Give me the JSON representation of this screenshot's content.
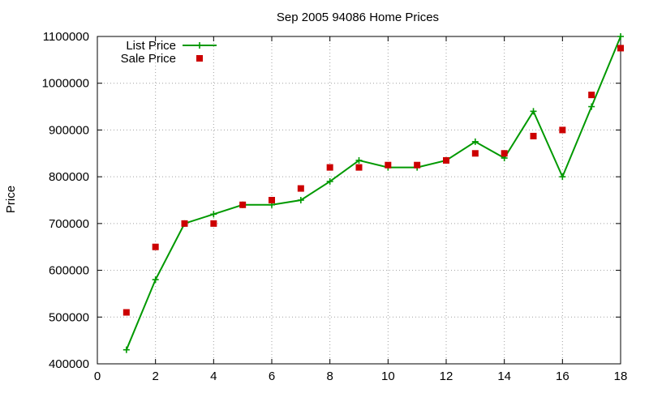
{
  "chart_data": {
    "type": "line",
    "title": "Sep 2005 94086 Home Prices",
    "xlabel": "",
    "ylabel": "Price",
    "xlim": [
      0,
      18
    ],
    "ylim": [
      400000,
      1100000
    ],
    "x_ticks": [
      0,
      2,
      4,
      6,
      8,
      10,
      12,
      14,
      16,
      18
    ],
    "y_ticks": [
      400000,
      500000,
      600000,
      700000,
      800000,
      900000,
      1000000,
      1100000
    ],
    "grid": true,
    "legend_position": "top-left",
    "series": [
      {
        "name": "List Price",
        "style": "line with + markers",
        "color": "#009900",
        "x": [
          1,
          2,
          3,
          4,
          5,
          6,
          7,
          8,
          9,
          10,
          11,
          12,
          13,
          14,
          15,
          16,
          17,
          18
        ],
        "values": [
          430000,
          580000,
          700000,
          720000,
          740000,
          740000,
          750000,
          790000,
          835000,
          820000,
          820000,
          835000,
          875000,
          840000,
          940000,
          800000,
          950000,
          1100000
        ]
      },
      {
        "name": "Sale Price",
        "style": "filled square points",
        "color": "#cc0000",
        "x": [
          1,
          2,
          3,
          4,
          5,
          6,
          7,
          8,
          9,
          10,
          11,
          12,
          13,
          14,
          15,
          16,
          17,
          18
        ],
        "values": [
          510000,
          650000,
          700000,
          700000,
          740000,
          750000,
          775000,
          820000,
          820000,
          825000,
          825000,
          835000,
          850000,
          850000,
          887000,
          900000,
          975000,
          1075000
        ]
      }
    ]
  }
}
